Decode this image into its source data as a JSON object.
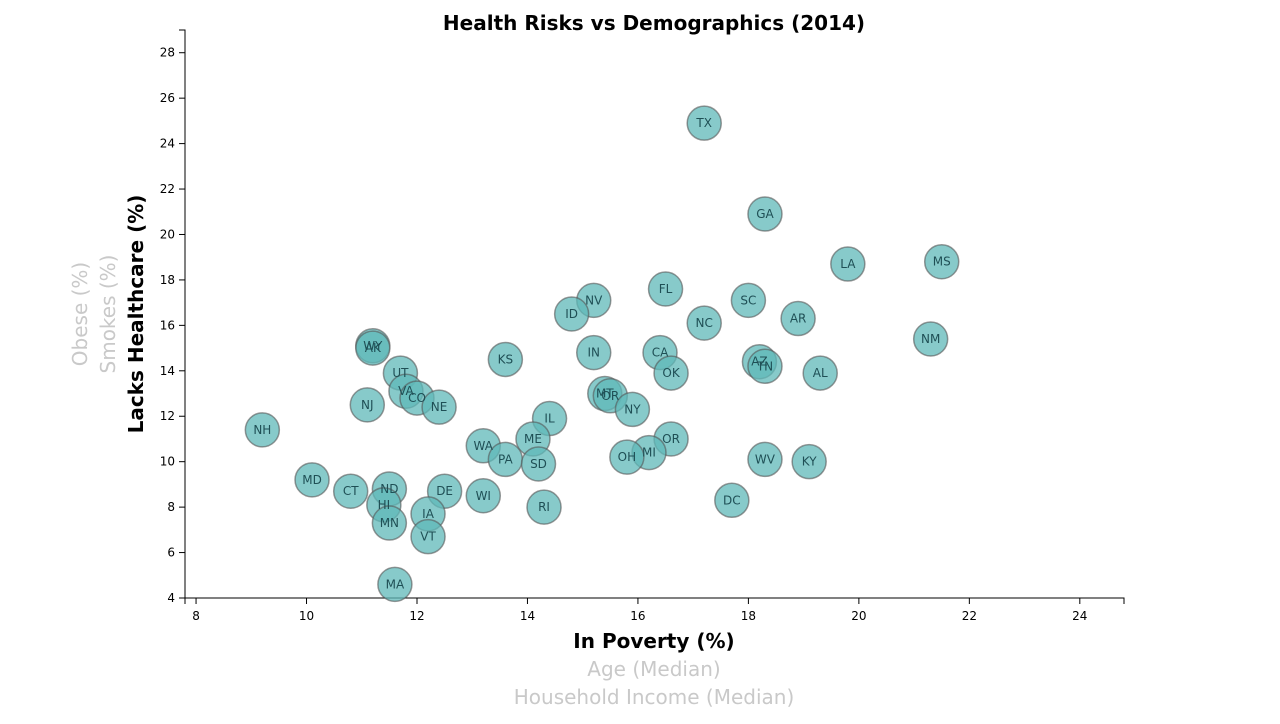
{
  "chart_data": {
    "type": "scatter",
    "title": "Health Risks vs Demographics (2014)",
    "x_axis": {
      "active_label": "In Poverty (%)",
      "inactive_labels": [
        "Age (Median)",
        "Household Income (Median)"
      ],
      "range": [
        7.8,
        24.8
      ],
      "ticks": [
        8,
        10,
        12,
        14,
        16,
        18,
        20,
        22,
        24
      ]
    },
    "y_axis": {
      "active_label": "Lacks Healthcare (%)",
      "inactive_labels": [
        "Smokes (%)",
        "Obese (%)"
      ],
      "range": [
        4,
        29
      ],
      "ticks": [
        4,
        6,
        8,
        10,
        12,
        14,
        16,
        18,
        20,
        22,
        24,
        26,
        28
      ]
    },
    "points": [
      {
        "label": "TX",
        "x": 17.2,
        "y": 24.9
      },
      {
        "label": "GA",
        "x": 18.3,
        "y": 20.9
      },
      {
        "label": "LA",
        "x": 19.8,
        "y": 18.7
      },
      {
        "label": "MS",
        "x": 21.5,
        "y": 18.8
      },
      {
        "label": "FL",
        "x": 16.5,
        "y": 17.6
      },
      {
        "label": "NV",
        "x": 15.2,
        "y": 17.1
      },
      {
        "label": "SC",
        "x": 18.0,
        "y": 17.1
      },
      {
        "label": "ID",
        "x": 14.8,
        "y": 16.5
      },
      {
        "label": "AR",
        "x": 18.9,
        "y": 16.3
      },
      {
        "label": "NC",
        "x": 17.2,
        "y": 16.1
      },
      {
        "label": "NM",
        "x": 21.3,
        "y": 15.4
      },
      {
        "label": "WY",
        "x": 11.2,
        "y": 15.1
      },
      {
        "label": "AK",
        "x": 11.2,
        "y": 15.0
      },
      {
        "label": "IN",
        "x": 15.2,
        "y": 14.8
      },
      {
        "label": "CA",
        "x": 16.4,
        "y": 14.8
      },
      {
        "label": "KS",
        "x": 13.6,
        "y": 14.5
      },
      {
        "label": "AZ",
        "x": 18.2,
        "y": 14.4
      },
      {
        "label": "TN",
        "x": 18.3,
        "y": 14.2
      },
      {
        "label": "OK",
        "x": 16.6,
        "y": 13.9
      },
      {
        "label": "AL",
        "x": 19.3,
        "y": 13.9
      },
      {
        "label": "UT",
        "x": 11.7,
        "y": 13.9
      },
      {
        "label": "VA",
        "x": 11.8,
        "y": 13.1
      },
      {
        "label": "CO",
        "x": 12.0,
        "y": 12.8
      },
      {
        "label": "MT",
        "x": 15.4,
        "y": 13.0
      },
      {
        "label": "OR",
        "x": 15.5,
        "y": 12.9
      },
      {
        "label": "NE",
        "x": 12.4,
        "y": 12.4
      },
      {
        "label": "NJ",
        "x": 11.1,
        "y": 12.5
      },
      {
        "label": "NY",
        "x": 15.9,
        "y": 12.3
      },
      {
        "label": "IL",
        "x": 14.4,
        "y": 11.9
      },
      {
        "label": "NH",
        "x": 9.2,
        "y": 11.4
      },
      {
        "label": "ME",
        "x": 14.1,
        "y": 11.0
      },
      {
        "label": "OR",
        "x": 16.6,
        "y": 11.0
      },
      {
        "label": "WA",
        "x": 13.2,
        "y": 10.7
      },
      {
        "label": "MI",
        "x": 16.2,
        "y": 10.4
      },
      {
        "label": "OH",
        "x": 15.8,
        "y": 10.2
      },
      {
        "label": "PA",
        "x": 13.6,
        "y": 10.1
      },
      {
        "label": "WV",
        "x": 18.3,
        "y": 10.1
      },
      {
        "label": "KY",
        "x": 19.1,
        "y": 10.0
      },
      {
        "label": "SD",
        "x": 14.2,
        "y": 9.9
      },
      {
        "label": "MD",
        "x": 10.1,
        "y": 9.2
      },
      {
        "label": "CT",
        "x": 10.8,
        "y": 8.7
      },
      {
        "label": "ND",
        "x": 11.5,
        "y": 8.8
      },
      {
        "label": "DE",
        "x": 12.5,
        "y": 8.7
      },
      {
        "label": "WI",
        "x": 13.2,
        "y": 8.5
      },
      {
        "label": "DC",
        "x": 17.7,
        "y": 8.3
      },
      {
        "label": "HI",
        "x": 11.4,
        "y": 8.1
      },
      {
        "label": "RI",
        "x": 14.3,
        "y": 8.0
      },
      {
        "label": "IA",
        "x": 12.2,
        "y": 7.7
      },
      {
        "label": "MN",
        "x": 11.5,
        "y": 7.3
      },
      {
        "label": "VT",
        "x": 12.2,
        "y": 6.7
      },
      {
        "label": "MA",
        "x": 11.6,
        "y": 4.6
      }
    ],
    "colors": {
      "marker_fill": "#5fb8b8",
      "marker_stroke": "#555555",
      "marker_label": "#1f4f55",
      "inactive_label": "#c9c9c9"
    },
    "grid": false,
    "legend": "none"
  }
}
